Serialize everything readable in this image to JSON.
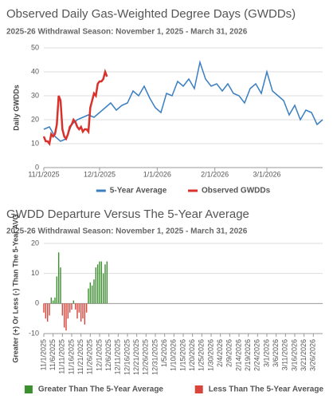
{
  "chart_data": [
    {
      "type": "line",
      "title": "Observed Daily Gas-Weighted Degree Days (GWDDs)",
      "subtitle": "2025-26 Withdrawal Season: November 1, 2025 - March 31, 2026",
      "y_label": "Daily GWDDs",
      "xlim": [
        0,
        150
      ],
      "xticks": [
        {
          "value": 0,
          "label": "11/1/2025"
        },
        {
          "value": 30,
          "label": "12/1/2025"
        },
        {
          "value": 61,
          "label": "1/1/2026"
        },
        {
          "value": 92,
          "label": "2/1/2026"
        },
        {
          "value": 120,
          "label": "3/1/2026"
        }
      ],
      "ylim": [
        0,
        50
      ],
      "yticks": [
        0,
        10,
        20,
        30,
        40,
        50
      ],
      "grid": true,
      "series": [
        {
          "name": "5-Year Average",
          "color": "#3a7fc1",
          "x": [
            0,
            3,
            6,
            9,
            12,
            15,
            18,
            21,
            24,
            27,
            30,
            33,
            36,
            39,
            42,
            45,
            48,
            51,
            54,
            57,
            60,
            63,
            66,
            69,
            72,
            75,
            78,
            81,
            84,
            87,
            90,
            93,
            96,
            99,
            102,
            105,
            108,
            111,
            114,
            117,
            120,
            123,
            126,
            129,
            132,
            135,
            138,
            141,
            144,
            147,
            150
          ],
          "values": [
            16,
            17,
            13,
            11,
            12,
            18,
            20,
            21,
            22,
            21,
            23,
            25,
            27,
            24,
            26,
            27,
            32,
            30,
            34,
            29,
            25,
            23,
            31,
            30,
            36,
            34,
            37,
            33,
            44,
            37,
            34,
            35,
            32,
            35,
            31,
            30,
            27,
            33,
            35,
            31,
            40,
            32,
            30,
            28,
            22,
            26,
            20,
            24,
            23,
            18,
            20
          ]
        },
        {
          "name": "Observed GWDDs",
          "color": "#d9312b",
          "x": [
            0,
            1,
            2,
            3,
            4,
            5,
            6,
            7,
            8,
            9,
            10,
            11,
            12,
            13,
            14,
            15,
            16,
            17,
            18,
            19,
            20,
            21,
            22,
            23,
            24,
            25,
            26,
            27,
            28,
            29,
            30,
            31,
            32,
            33,
            34
          ],
          "values": [
            13,
            11,
            11,
            10,
            14,
            13,
            14,
            18,
            30,
            28,
            16,
            13,
            12,
            14,
            17,
            18,
            20,
            19,
            17,
            16,
            17,
            15,
            16,
            16,
            15,
            25,
            28,
            31,
            30,
            35,
            36,
            36,
            37,
            40,
            38
          ]
        }
      ]
    },
    {
      "type": "bar",
      "title": "GWDD Departure Versus The 5-Year Average",
      "subtitle": "2025-26 Withdrawal Season: November 1, 2025 - March 31, 2026",
      "y_label": "Greater (+) Or Less (-) Than The 5-Year AVG",
      "xlim": [
        0,
        150
      ],
      "xticks": [
        {
          "value": 0,
          "label": "11/1/2025"
        },
        {
          "value": 5,
          "label": "11/6/2025"
        },
        {
          "value": 10,
          "label": "11/11/2025"
        },
        {
          "value": 15,
          "label": "11/16/2025"
        },
        {
          "value": 20,
          "label": "11/21/2025"
        },
        {
          "value": 25,
          "label": "11/26/2025"
        },
        {
          "value": 30,
          "label": "12/1/2025"
        },
        {
          "value": 35,
          "label": "12/6/2025"
        },
        {
          "value": 40,
          "label": "12/11/2025"
        },
        {
          "value": 45,
          "label": "12/16/2025"
        },
        {
          "value": 50,
          "label": "12/21/2025"
        },
        {
          "value": 55,
          "label": "12/26/2025"
        },
        {
          "value": 60,
          "label": "12/31/2025"
        },
        {
          "value": 65,
          "label": "1/5/2026"
        },
        {
          "value": 70,
          "label": "1/10/2026"
        },
        {
          "value": 75,
          "label": "1/15/2026"
        },
        {
          "value": 80,
          "label": "1/20/2026"
        },
        {
          "value": 85,
          "label": "1/25/2026"
        },
        {
          "value": 90,
          "label": "1/30/2026"
        },
        {
          "value": 95,
          "label": "2/4/2026"
        },
        {
          "value": 100,
          "label": "2/9/2026"
        },
        {
          "value": 105,
          "label": "2/14/2026"
        },
        {
          "value": 110,
          "label": "2/19/2026"
        },
        {
          "value": 115,
          "label": "2/24/2026"
        },
        {
          "value": 120,
          "label": "3/1/2026"
        },
        {
          "value": 125,
          "label": "3/6/2026"
        },
        {
          "value": 130,
          "label": "3/11/2026"
        },
        {
          "value": 135,
          "label": "3/16/2026"
        },
        {
          "value": 140,
          "label": "3/21/2026"
        },
        {
          "value": 145,
          "label": "3/26/2026"
        }
      ],
      "ylim": [
        -10,
        20
      ],
      "yticks": [
        -10,
        0,
        10,
        20
      ],
      "grid": true,
      "x": [
        0,
        1,
        2,
        3,
        4,
        5,
        6,
        7,
        8,
        9,
        10,
        11,
        12,
        13,
        14,
        15,
        16,
        17,
        18,
        19,
        20,
        21,
        22,
        23,
        24,
        25,
        26,
        27,
        28,
        29,
        30,
        31,
        32,
        33,
        34
      ],
      "series": [
        {
          "name": "Greater Than The 5-Year Average",
          "color": "#3b8f2e",
          "values": [
            null,
            null,
            null,
            null,
            2,
            1,
            2,
            9,
            17,
            12,
            null,
            null,
            null,
            null,
            null,
            null,
            1,
            null,
            null,
            null,
            null,
            null,
            null,
            null,
            5,
            7,
            6,
            8,
            12,
            13,
            14,
            14,
            10,
            13,
            14
          ]
        },
        {
          "name": "Less Than The 5-Year Average",
          "color": "#d9453b",
          "values": [
            -3,
            -5,
            -6,
            -4,
            null,
            null,
            null,
            null,
            null,
            null,
            -4,
            -8,
            -9,
            -5,
            -3,
            -2,
            null,
            -2,
            -5,
            -3,
            -6,
            -5,
            -7,
            -3,
            null,
            null,
            null,
            null,
            null,
            null,
            null,
            null,
            null,
            null,
            null
          ]
        }
      ]
    }
  ]
}
